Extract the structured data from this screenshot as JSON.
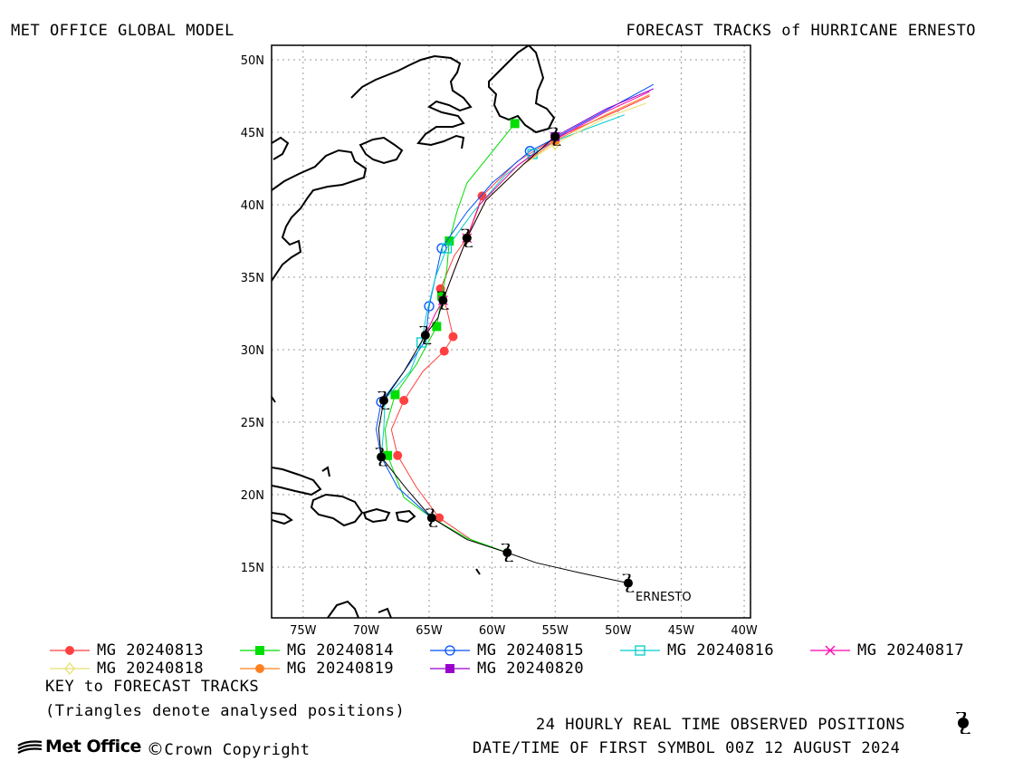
{
  "header": {
    "left_title": "MET OFFICE GLOBAL MODEL",
    "right_title": "FORECAST TRACKS of HURRICANE ERNESTO"
  },
  "map": {
    "lon_ticks": [
      "75W",
      "70W",
      "65W",
      "60W",
      "55W",
      "50W",
      "45W",
      "40W"
    ],
    "lat_ticks": [
      "50N",
      "45N",
      "40N",
      "35N",
      "30N",
      "25N",
      "20N",
      "15N"
    ],
    "storm_label": "ERNESTO",
    "colors": {
      "observed": "#000000",
      "mg13": "#ff4040",
      "mg14": "#00dd00",
      "mg15": "#0050ff",
      "mg16": "#00cccc",
      "mg17": "#ff00aa",
      "mg18": "#e8e070",
      "mg19": "#ff8020",
      "mg20": "#9900cc"
    }
  },
  "legend": {
    "items": [
      {
        "label": "MG 20240813",
        "color": "#ff4040",
        "marker": "filled-circle"
      },
      {
        "label": "MG 20240814",
        "color": "#00dd00",
        "marker": "filled-square"
      },
      {
        "label": "MG 20240815",
        "color": "#0050ff",
        "marker": "open-circle"
      },
      {
        "label": "MG 20240816",
        "color": "#00cccc",
        "marker": "open-square"
      },
      {
        "label": "MG 20240817",
        "color": "#ff00aa",
        "marker": "cross"
      },
      {
        "label": "MG 20240818",
        "color": "#e8e070",
        "marker": "open-diamond"
      },
      {
        "label": "MG 20240819",
        "color": "#ff8020",
        "marker": "filled-circle"
      },
      {
        "label": "MG 20240820",
        "color": "#9900cc",
        "marker": "filled-square"
      }
    ],
    "key_title": "KEY to FORECAST TRACKS",
    "key_note": "(Triangles denote analysed positions)"
  },
  "footer": {
    "logo_text": "Met Office",
    "copyright": "Crown Copyright",
    "copyright_symbol": "©",
    "observed_label": "24 HOURLY REAL TIME OBSERVED POSITIONS",
    "date_label": "DATE/TIME OF FIRST SYMBOL 00Z 12 AUGUST 2024"
  }
}
